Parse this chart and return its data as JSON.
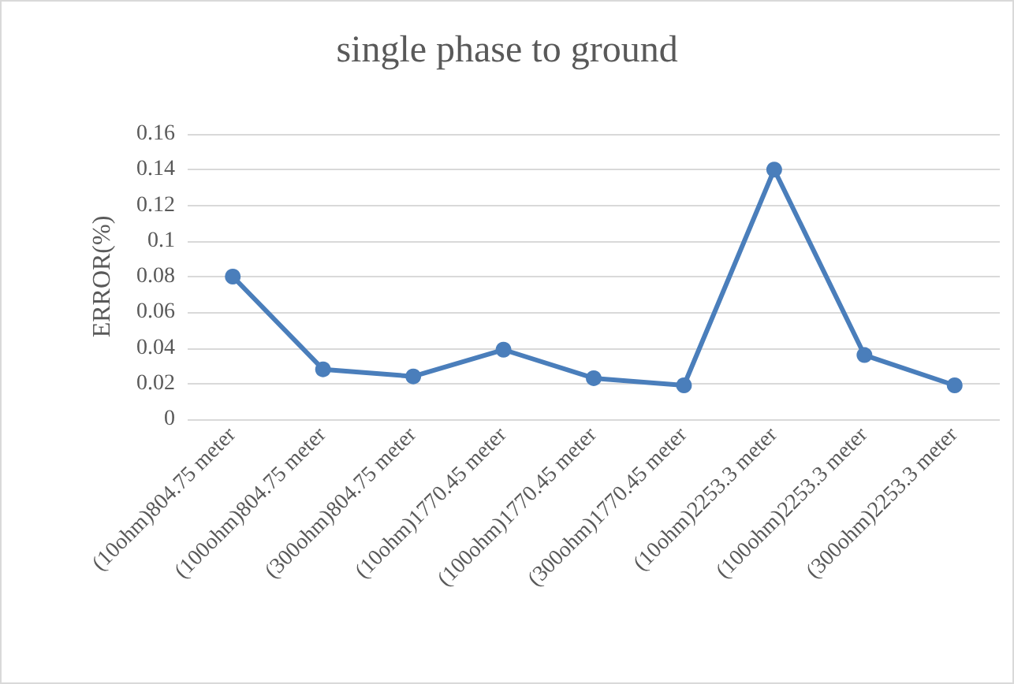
{
  "chart_data": {
    "type": "line",
    "title": "single phase to ground",
    "ylabel": "ERROR(%)",
    "categories": [
      "(10ohm)804.75 meter",
      "(100ohm)804.75 meter",
      "(300ohm)804.75 meter",
      "(10ohm)1770.45 meter",
      "(100ohm)1770.45 meter",
      "(300ohm)1770.45 meter",
      "(10ohm)2253.3 meter",
      "(100ohm)2253.3 meter",
      "(300ohm)2253.3 meter"
    ],
    "series": [
      {
        "color": "#4a7ebb",
        "values": [
          0.08,
          0.028,
          0.024,
          0.039,
          0.023,
          0.019,
          0.14,
          0.036,
          0.019
        ]
      }
    ],
    "ylim": [
      0,
      0.16
    ],
    "yticks": [
      0,
      0.02,
      0.04,
      0.06,
      0.08,
      0.1,
      0.12,
      0.14,
      0.16
    ],
    "grid": "y",
    "marker": "circle",
    "line_style": "solid"
  }
}
